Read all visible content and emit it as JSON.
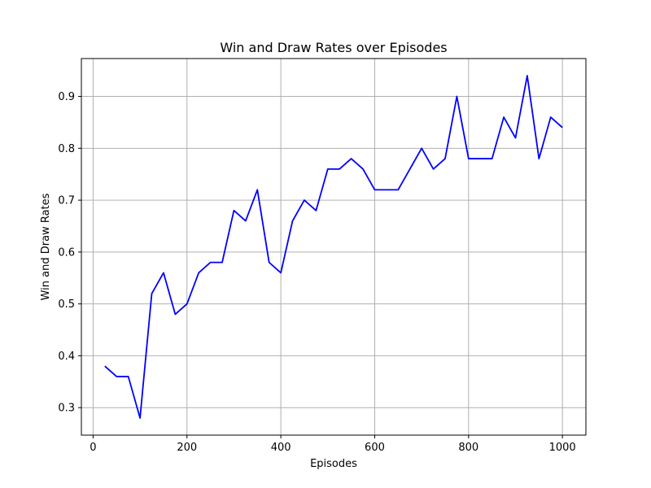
{
  "chart_data": {
    "type": "line",
    "title": "Win and Draw Rates over Episodes",
    "xlabel": "Episodes",
    "ylabel": "Win and Draw Rates",
    "xlim": [
      -25,
      1050
    ],
    "ylim": [
      0.247,
      0.973
    ],
    "xticks": [
      0,
      200,
      400,
      600,
      800,
      1000
    ],
    "yticks": [
      0.3,
      0.4,
      0.5,
      0.6,
      0.7,
      0.8,
      0.9
    ],
    "grid": true,
    "series": [
      {
        "color": "#0000ff",
        "x": [
          25,
          50,
          75,
          100,
          125,
          150,
          175,
          200,
          225,
          250,
          275,
          300,
          325,
          350,
          375,
          400,
          425,
          450,
          475,
          500,
          525,
          550,
          575,
          600,
          625,
          650,
          675,
          700,
          725,
          750,
          775,
          800,
          825,
          850,
          875,
          900,
          925,
          950,
          975,
          1000
        ],
        "y": [
          0.38,
          0.36,
          0.36,
          0.28,
          0.52,
          0.56,
          0.48,
          0.5,
          0.56,
          0.58,
          0.58,
          0.68,
          0.66,
          0.72,
          0.58,
          0.56,
          0.66,
          0.7,
          0.68,
          0.76,
          0.76,
          0.78,
          0.76,
          0.72,
          0.72,
          0.72,
          0.76,
          0.8,
          0.76,
          0.78,
          0.9,
          0.78,
          0.78,
          0.78,
          0.86,
          0.82,
          0.94,
          0.78,
          0.86,
          0.84
        ]
      }
    ]
  }
}
